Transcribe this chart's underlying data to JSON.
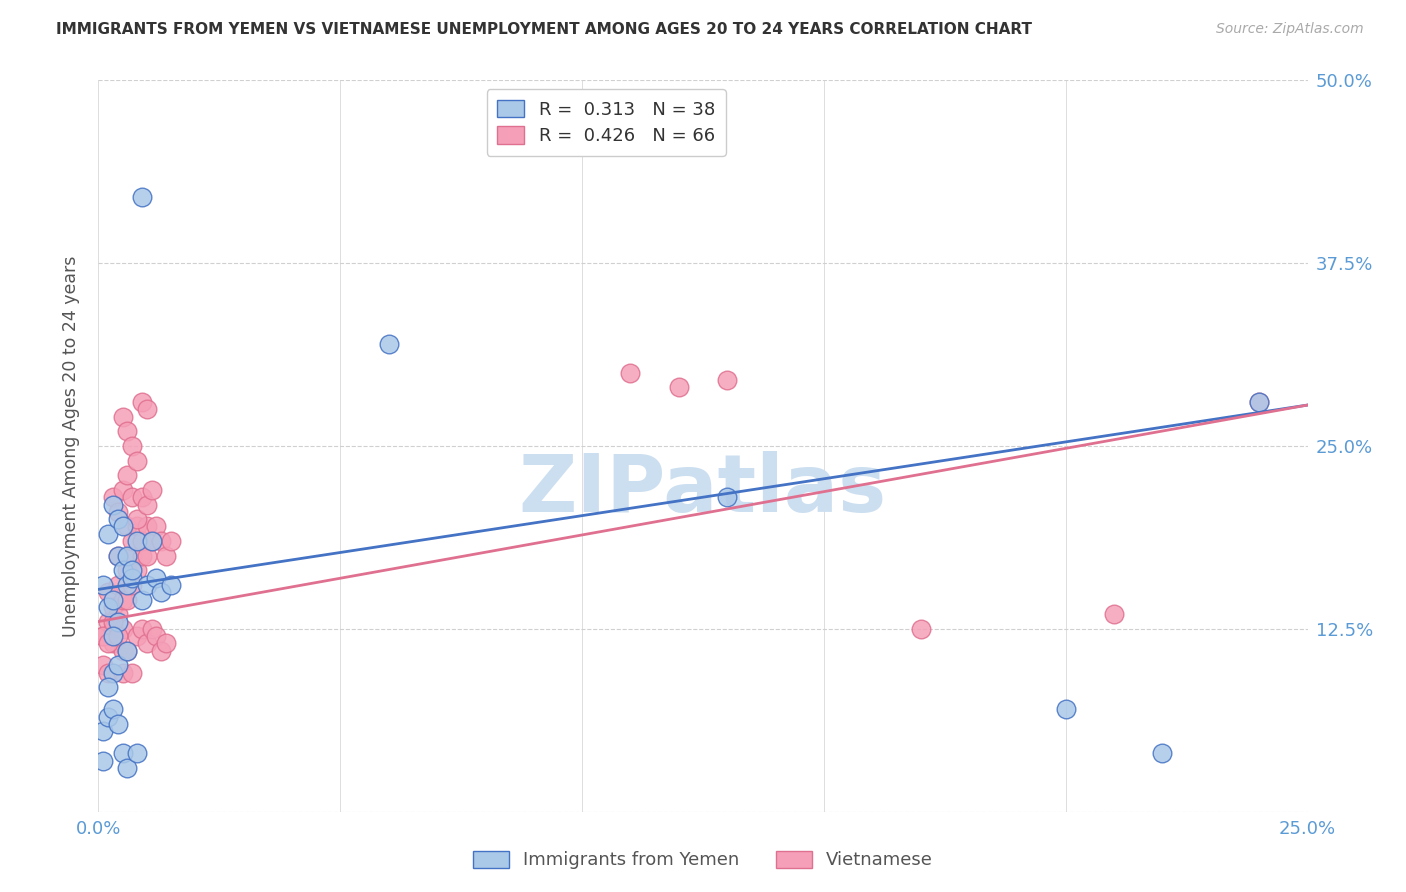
{
  "title": "IMMIGRANTS FROM YEMEN VS VIETNAMESE UNEMPLOYMENT AMONG AGES 20 TO 24 YEARS CORRELATION CHART",
  "source": "Source: ZipAtlas.com",
  "ylabel": "Unemployment Among Ages 20 to 24 years",
  "xlim": [
    0.0,
    0.25
  ],
  "ylim": [
    0.0,
    0.5
  ],
  "yticks": [
    0.0,
    0.125,
    0.25,
    0.375,
    0.5
  ],
  "ytick_labels": [
    "",
    "12.5%",
    "25.0%",
    "37.5%",
    "50.0%"
  ],
  "xtick_positions": [
    0.0,
    0.05,
    0.1,
    0.15,
    0.2,
    0.25
  ],
  "axis_color": "#5b9bd5",
  "blue_color": "#aac8e8",
  "pink_color": "#f5a0b8",
  "blue_edge_color": "#4472c4",
  "pink_edge_color": "#e07090",
  "blue_line_color": "#4472c4",
  "pink_line_color": "#e07090",
  "grid_color": "#d0d0d0",
  "watermark_color": "#ccdff0",
  "yemen_x": [
    0.001,
    0.002,
    0.002,
    0.003,
    0.003,
    0.004,
    0.004,
    0.005,
    0.005,
    0.006,
    0.006,
    0.007,
    0.007,
    0.008,
    0.009,
    0.01,
    0.011,
    0.012,
    0.013,
    0.015,
    0.001,
    0.002,
    0.003,
    0.004,
    0.005,
    0.006,
    0.008,
    0.003,
    0.002,
    0.001,
    0.004,
    0.006,
    0.009,
    0.004,
    0.003,
    0.06,
    0.13,
    0.2,
    0.22,
    0.24
  ],
  "yemen_y": [
    0.155,
    0.19,
    0.14,
    0.21,
    0.145,
    0.2,
    0.175,
    0.165,
    0.195,
    0.155,
    0.175,
    0.16,
    0.165,
    0.185,
    0.145,
    0.155,
    0.185,
    0.16,
    0.15,
    0.155,
    0.055,
    0.065,
    0.07,
    0.06,
    0.04,
    0.03,
    0.04,
    0.095,
    0.085,
    0.035,
    0.1,
    0.11,
    0.42,
    0.13,
    0.12,
    0.32,
    0.215,
    0.07,
    0.04,
    0.28
  ],
  "viet_x": [
    0.001,
    0.001,
    0.002,
    0.002,
    0.002,
    0.003,
    0.003,
    0.003,
    0.004,
    0.004,
    0.004,
    0.005,
    0.005,
    0.005,
    0.006,
    0.006,
    0.006,
    0.007,
    0.007,
    0.007,
    0.008,
    0.008,
    0.009,
    0.009,
    0.01,
    0.01,
    0.011,
    0.012,
    0.013,
    0.014,
    0.015,
    0.001,
    0.002,
    0.003,
    0.004,
    0.005,
    0.006,
    0.007,
    0.008,
    0.009,
    0.01,
    0.011,
    0.012,
    0.013,
    0.014,
    0.003,
    0.004,
    0.005,
    0.006,
    0.007,
    0.008,
    0.009,
    0.01,
    0.011,
    0.005,
    0.006,
    0.007,
    0.008,
    0.009,
    0.01,
    0.11,
    0.12,
    0.13,
    0.17,
    0.21,
    0.24
  ],
  "viet_y": [
    0.12,
    0.1,
    0.13,
    0.15,
    0.095,
    0.14,
    0.125,
    0.115,
    0.155,
    0.135,
    0.175,
    0.145,
    0.125,
    0.11,
    0.165,
    0.195,
    0.145,
    0.155,
    0.175,
    0.185,
    0.195,
    0.165,
    0.175,
    0.185,
    0.195,
    0.175,
    0.185,
    0.195,
    0.185,
    0.175,
    0.185,
    0.12,
    0.115,
    0.13,
    0.12,
    0.095,
    0.11,
    0.095,
    0.12,
    0.125,
    0.115,
    0.125,
    0.12,
    0.11,
    0.115,
    0.215,
    0.205,
    0.22,
    0.23,
    0.215,
    0.2,
    0.215,
    0.21,
    0.22,
    0.27,
    0.26,
    0.25,
    0.24,
    0.28,
    0.275,
    0.3,
    0.29,
    0.295,
    0.125,
    0.135,
    0.28
  ],
  "blue_line_x0": 0.0,
  "blue_line_y0": 0.152,
  "blue_line_x1": 0.25,
  "blue_line_y1": 0.278,
  "pink_line_x0": 0.0,
  "pink_line_y0": 0.13,
  "pink_line_x1": 0.25,
  "pink_line_y1": 0.278
}
